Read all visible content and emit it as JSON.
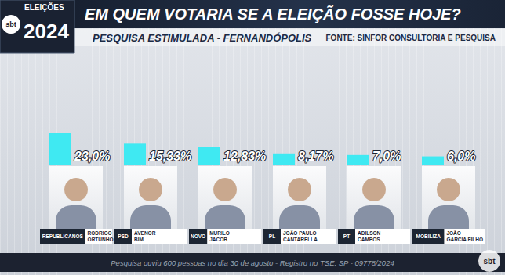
{
  "chart_data": {
    "type": "bar",
    "title": "EM QUEM VOTARIA SE A ELEIÇÃO FOSSE HOJE?",
    "subtitle": "PESQUISA ESTIMULADA - FERNANDÓPOLIS",
    "source": "FONTE: SINFOR CONSULTORIA E PESQUISA",
    "footnote": "Pesquisa ouviu 600 pessoas no dia 30 de agosto - Registro no TSE: SP - 09778/2024",
    "badge": [
      "ELEIÇÕES",
      "2024"
    ],
    "brand": "sbt",
    "categories": [
      "RODRIGO\nORTUNHO",
      "AVENOR\nBIM",
      "MURILO\nJACOB",
      "JOÃO PAULO\nCANTARELLA",
      "ADILSON\nCAMPOS",
      "JOÃO\nGARCIA FILHO"
    ],
    "parties": [
      "REPUBLICANOS",
      "PSD",
      "NOVO",
      "PL",
      "PT",
      "MOBILIZA"
    ],
    "values": [
      23.0,
      15.33,
      12.83,
      8.17,
      7.0,
      6.0
    ],
    "value_labels": [
      "23,0%",
      "15,33%",
      "12,83%",
      "8,17%",
      "7,0%",
      "6,0%"
    ],
    "color": "#3fe9f2",
    "ylim": [
      0,
      23
    ],
    "data_labels": true,
    "tick_labels": "x",
    "grid": false
  }
}
